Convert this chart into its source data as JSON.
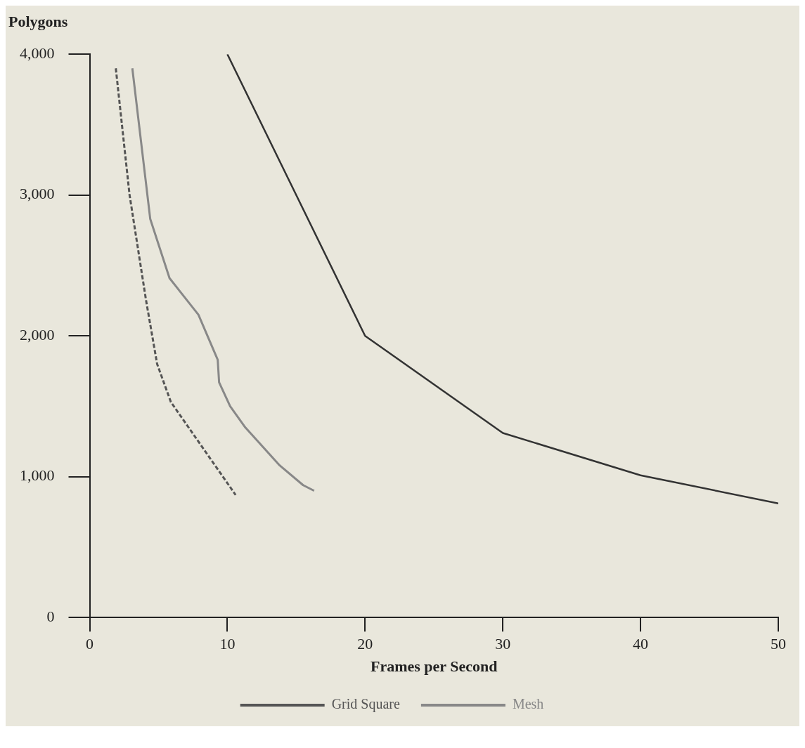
{
  "chart_data": {
    "type": "line",
    "ylabel": "Polygons",
    "xlabel": "Frames per Second",
    "xlim": [
      0,
      50
    ],
    "xticks": [
      0,
      10,
      20,
      30,
      40,
      50
    ],
    "ylim": [
      0,
      4000
    ],
    "yticks": [
      0,
      {
        "value": 1000,
        "label": "1,000"
      },
      {
        "value": 2000,
        "label": "2,000"
      },
      {
        "value": 3000,
        "label": "3,000"
      },
      {
        "value": 4000,
        "label": "4,000"
      }
    ],
    "grid": false,
    "legend": "bottom",
    "marker": "none",
    "series": [
      {
        "color": "#333333",
        "line_style": "solid",
        "x": [
          10,
          20,
          30,
          40,
          50
        ],
        "values": [
          4000,
          2000,
          1310,
          1010,
          810
        ]
      },
      {
        "name": "Grid Square",
        "color": "#555555",
        "line_style": "dashed",
        "x": [
          1.9,
          2.9,
          4.1,
          4.9,
          5.9,
          10.6
        ],
        "values": [
          3900,
          3000,
          2250,
          1800,
          1530,
          870
        ]
      },
      {
        "name": "Mesh",
        "color": "#888888",
        "line_style": "solid",
        "x": [
          3.1,
          4.4,
          5.8,
          7.9,
          9.3,
          9.4,
          10.2,
          11.3,
          13.8,
          15.5,
          16.3
        ],
        "values": [
          3900,
          2830,
          2410,
          2150,
          1830,
          1670,
          1500,
          1350,
          1080,
          940,
          900
        ]
      }
    ]
  }
}
